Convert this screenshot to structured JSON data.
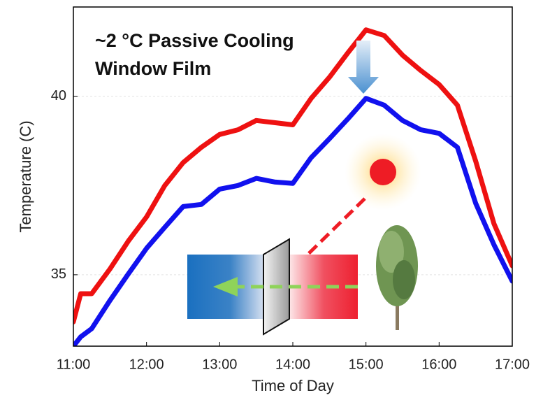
{
  "chart_data": {
    "type": "line",
    "annotation": [
      "~2 °C Passive Cooling",
      "Window Film"
    ],
    "x_label": "Time of Day",
    "y_label": "Temperature (C)",
    "x": [
      11,
      11.1,
      11.25,
      11.5,
      11.75,
      12,
      12.25,
      12.5,
      12.75,
      13,
      13.25,
      13.5,
      13.75,
      14,
      14.25,
      14.5,
      14.75,
      15,
      15.25,
      15.5,
      15.75,
      16,
      16.25,
      16.5,
      16.75,
      17
    ],
    "series": [
      {
        "color": "#ee1111",
        "values": [
          33.68,
          34.47,
          34.47,
          35.16,
          35.94,
          36.62,
          37.5,
          38.14,
          38.57,
          38.93,
          39.06,
          39.32,
          39.26,
          39.2,
          39.94,
          40.53,
          41.21,
          41.86,
          41.7,
          41.15,
          40.72,
          40.33,
          39.75,
          38.18,
          36.43,
          35.25
        ]
      },
      {
        "color": "#1111ee",
        "values": [
          33.0,
          33.26,
          33.49,
          34.28,
          35.02,
          35.74,
          36.33,
          36.91,
          36.97,
          37.4,
          37.5,
          37.7,
          37.6,
          37.56,
          38.28,
          38.81,
          39.36,
          39.94,
          39.75,
          39.32,
          39.06,
          38.96,
          38.57,
          37.0,
          35.84,
          34.82
        ]
      }
    ],
    "xlim": [
      11,
      17
    ],
    "xticks": [
      {
        "value": 11,
        "label": "11:00"
      },
      {
        "value": 12,
        "label": "12:00"
      },
      {
        "value": 13,
        "label": "13:00"
      },
      {
        "value": 14,
        "label": "14:00"
      },
      {
        "value": 15,
        "label": "15:00"
      },
      {
        "value": 16,
        "label": "16:00"
      },
      {
        "value": 17,
        "label": "17:00"
      }
    ],
    "ylim": [
      33,
      42.5
    ],
    "yticks": [
      35,
      40
    ],
    "grid": true
  }
}
